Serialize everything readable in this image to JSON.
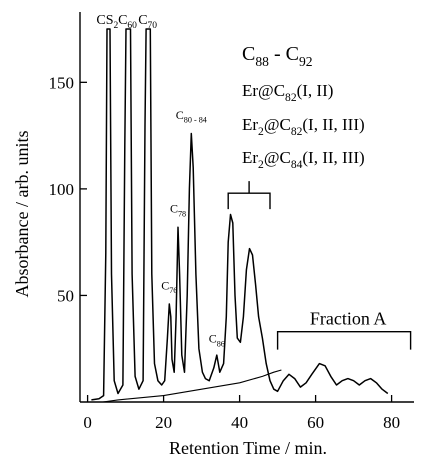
{
  "chart_data": {
    "type": "line",
    "xlabel": "Retention Time / min.",
    "ylabel": "Absorbance / arb. units",
    "xlim": [
      -2,
      88
    ],
    "ylim": [
      0,
      183
    ],
    "xticks": [
      0,
      20,
      40,
      60,
      80
    ],
    "yticks": [
      50,
      100,
      150
    ],
    "grid": false,
    "legend": "none",
    "series": [
      {
        "values": [
          [
            1,
            1
          ],
          [
            3,
            1.5
          ],
          [
            4.2,
            3
          ],
          [
            4.8,
            70
          ],
          [
            5.1,
            175
          ],
          [
            5.9,
            175
          ],
          [
            6.3,
            60
          ],
          [
            7,
            10
          ],
          [
            8,
            4
          ],
          [
            9.3,
            8
          ],
          [
            9.8,
            120
          ],
          [
            10.1,
            175
          ],
          [
            11.3,
            175
          ],
          [
            11.7,
            60
          ],
          [
            12.5,
            12
          ],
          [
            13.5,
            6
          ],
          [
            14.6,
            10
          ],
          [
            15.1,
            130
          ],
          [
            15.4,
            175
          ],
          [
            16.5,
            175
          ],
          [
            16.9,
            60
          ],
          [
            17.6,
            18
          ],
          [
            18.5,
            10
          ],
          [
            19.5,
            8
          ],
          [
            20.3,
            10
          ],
          [
            21,
            30
          ],
          [
            21.5,
            46
          ],
          [
            21.9,
            40
          ],
          [
            22.2,
            20
          ],
          [
            22.8,
            14
          ],
          [
            23.3,
            40
          ],
          [
            23.8,
            82
          ],
          [
            24.2,
            60
          ],
          [
            24.8,
            22
          ],
          [
            25.5,
            14
          ],
          [
            26.2,
            50
          ],
          [
            26.8,
            100
          ],
          [
            27.3,
            126
          ],
          [
            27.8,
            110
          ],
          [
            28.5,
            60
          ],
          [
            29.3,
            25
          ],
          [
            30.2,
            14
          ],
          [
            31,
            11
          ],
          [
            32,
            10
          ],
          [
            33.2,
            16
          ],
          [
            34,
            22
          ],
          [
            34.8,
            14
          ],
          [
            35.8,
            18
          ],
          [
            36.5,
            40
          ],
          [
            37,
            75
          ],
          [
            37.6,
            88
          ],
          [
            38.2,
            84
          ],
          [
            38.8,
            50
          ],
          [
            39.4,
            30
          ],
          [
            40.2,
            28
          ],
          [
            41,
            40
          ],
          [
            41.8,
            62
          ],
          [
            42.6,
            72
          ],
          [
            43.4,
            69
          ],
          [
            44.2,
            55
          ],
          [
            45,
            40
          ],
          [
            46,
            30
          ],
          [
            47,
            18
          ],
          [
            48,
            10
          ],
          [
            49,
            6
          ],
          [
            50,
            5
          ],
          [
            51.5,
            10
          ],
          [
            53,
            13
          ],
          [
            54.5,
            11
          ],
          [
            56,
            7
          ],
          [
            57.5,
            9
          ],
          [
            59,
            13
          ],
          [
            61,
            18
          ],
          [
            62.5,
            17
          ],
          [
            64,
            12
          ],
          [
            65.5,
            8
          ],
          [
            67,
            10
          ],
          [
            68.5,
            11
          ],
          [
            70,
            10
          ],
          [
            71.5,
            8
          ],
          [
            73,
            10
          ],
          [
            74.5,
            11
          ],
          [
            76,
            9
          ],
          [
            77.5,
            6
          ],
          [
            79,
            4
          ]
        ]
      },
      {
        "values": [
          [
            4,
            0
          ],
          [
            8,
            1
          ],
          [
            20,
            3
          ],
          [
            30,
            6
          ],
          [
            40,
            9
          ],
          [
            46,
            12
          ],
          [
            49,
            14
          ],
          [
            51,
            15
          ]
        ]
      }
    ],
    "peak_labels": [
      {
        "text": "CS",
        "sub": "2",
        "x": 5.2,
        "y": 175
      },
      {
        "text": "C",
        "sub": "60",
        "x": 10.5,
        "y": 175
      },
      {
        "text": "C",
        "sub": "70",
        "x": 15.8,
        "y": 175
      },
      {
        "text": "C",
        "sub": "76",
        "x": 21.5,
        "y": 50
      },
      {
        "text": "C",
        "sub": "78",
        "x": 23.8,
        "y": 86
      },
      {
        "text": "C",
        "sub": "80 - 84",
        "x": 27.3,
        "y": 130
      },
      {
        "text": "C",
        "sub": "86",
        "x": 34,
        "y": 25
      }
    ],
    "annotations": {
      "group_lines": [
        [
          {
            "text": "C",
            "sub": "88"
          },
          {
            "text": " - C",
            "sub": "92"
          }
        ],
        [
          {
            "text": "Er@C",
            "sub": "82"
          },
          {
            "text": "(I, II)"
          }
        ],
        [
          {
            "text": "Er",
            "sub": "2"
          },
          {
            "text": "@C",
            "sub": "82"
          },
          {
            "text": "(I, II, III)"
          }
        ],
        [
          {
            "text": "Er",
            "sub": "2"
          },
          {
            "text": "@C",
            "sub": "84"
          },
          {
            "text": "(I, II, III)"
          }
        ]
      ],
      "group_bracket": {
        "x_range": [
          37,
          48
        ],
        "y": 98
      },
      "fraction_label": "Fraction A",
      "fraction_bracket": {
        "x_range": [
          50,
          85
        ],
        "y": 33
      }
    }
  }
}
